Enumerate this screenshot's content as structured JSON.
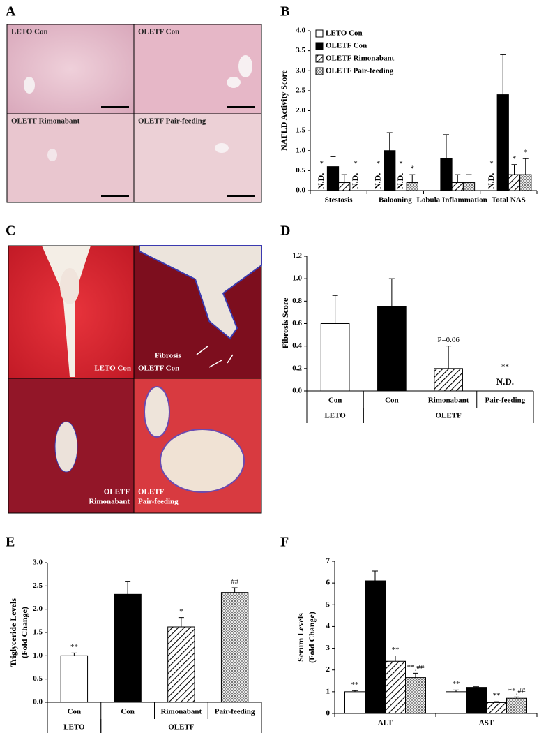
{
  "images": [
    {
      "panel": "A",
      "tiles": [
        {
          "label": [
            "LETO Con"
          ]
        },
        {
          "label": [
            "OLETF Con"
          ]
        },
        {
          "label": [
            "OLETF Rimonabant"
          ]
        },
        {
          "label": [
            "OLETF Pair-feeding"
          ]
        }
      ]
    },
    {
      "panel": "C",
      "tiles": [
        {
          "label": [
            "LETO Con"
          ]
        },
        {
          "label": [
            "OLETF Con"
          ]
        },
        {
          "label": [
            "OLETF",
            "Rimonabant"
          ]
        },
        {
          "label": [
            "OLETF",
            "Pair-feeding"
          ]
        }
      ],
      "annotation": "Fibrosis"
    }
  ],
  "chart_data": [
    {
      "type": "bar",
      "panel": "B",
      "ylabel": [
        "NAFLD Activity Score"
      ],
      "categories": [
        "Stestosis",
        "Balooning",
        "Lobula Inflammation",
        "Total NAS"
      ],
      "ylim": [
        0,
        4
      ],
      "yticks": [
        {
          "value": 0,
          "label": "0.0"
        },
        {
          "value": 0.5,
          "label": "0.5"
        },
        {
          "value": 1,
          "label": "1.0"
        },
        {
          "value": 1.5,
          "label": "1.5"
        },
        {
          "value": 2,
          "label": "2.0"
        },
        {
          "value": 2.5,
          "label": "2.5"
        },
        {
          "value": 3,
          "label": "3.0"
        },
        {
          "value": 3.5,
          "label": "3.5"
        },
        {
          "value": 4,
          "label": "4.0"
        }
      ],
      "legend": "top-left",
      "value_labels_rotated": true,
      "series": [
        {
          "name": "LETO Con",
          "style": "white",
          "values": [
            0,
            0,
            0,
            0
          ],
          "errors": [
            null,
            null,
            null,
            null
          ],
          "value_labels": [
            "N.D.",
            "N.D.",
            null,
            "N.D."
          ],
          "annotations": [
            "*",
            "*",
            null,
            "*"
          ]
        },
        {
          "name": "OLETF Con",
          "style": "black",
          "values": [
            0.6,
            1.0,
            0.8,
            2.4
          ],
          "errors": [
            0.25,
            0.45,
            0.6,
            1.0
          ],
          "value_labels": [
            null,
            null,
            null,
            null
          ],
          "annotations": [
            null,
            null,
            null,
            null
          ]
        },
        {
          "name": "OLETF Rimonabant",
          "style": "hatch",
          "values": [
            0.2,
            0,
            0.2,
            0.4
          ],
          "errors": [
            0.2,
            null,
            0.2,
            0.25
          ],
          "value_labels": [
            null,
            "N.D.",
            null,
            null
          ],
          "annotations": [
            null,
            "*",
            null,
            "*"
          ]
        },
        {
          "name": "OLETF Pair-feeding",
          "style": "dots",
          "values": [
            0,
            0.2,
            0.2,
            0.4
          ],
          "errors": [
            null,
            0.2,
            0.2,
            0.4
          ],
          "value_labels": [
            "N.D.",
            null,
            null,
            null
          ],
          "annotations": [
            "*",
            "*",
            null,
            "*"
          ]
        }
      ]
    },
    {
      "type": "bar",
      "panel": "D",
      "ylabel": [
        "Fibrosis Score"
      ],
      "categories": [
        "Con",
        "Con",
        "Rimonabant",
        "Pair-feeding"
      ],
      "groups": [
        {
          "name": "LETO",
          "span": 1
        },
        {
          "name": "OLETF",
          "span": 3
        }
      ],
      "ylim": [
        0,
        1.2
      ],
      "yticks": [
        {
          "value": 0,
          "label": "0.0"
        },
        {
          "value": 0.2,
          "label": "0.2"
        },
        {
          "value": 0.4,
          "label": "0.4"
        },
        {
          "value": 0.6,
          "label": "0.6"
        },
        {
          "value": 0.8,
          "label": "0.8"
        },
        {
          "value": 1,
          "label": "1.0"
        },
        {
          "value": 1.2,
          "label": "1.2"
        }
      ],
      "value_labels_rotated": false,
      "bar_styles": [
        "white",
        "black",
        "hatch",
        "dots"
      ],
      "values": [
        0.6,
        0.75,
        0.2,
        0
      ],
      "errors": [
        0.25,
        0.25,
        0.2,
        null
      ],
      "value_labels": [
        null,
        null,
        null,
        "N.D."
      ],
      "annotations": [
        null,
        null,
        "P=0.06",
        "**"
      ]
    },
    {
      "type": "bar",
      "panel": "E",
      "ylabel": [
        "Triglyceride Levels",
        "(Fold Change)"
      ],
      "categories": [
        "Con",
        "Con",
        "Rimonabant",
        "Pair-feeding"
      ],
      "groups": [
        {
          "name": "LETO",
          "span": 1
        },
        {
          "name": "OLETF",
          "span": 3
        }
      ],
      "ylim": [
        0,
        3
      ],
      "yticks": [
        {
          "value": 0,
          "label": "0.0"
        },
        {
          "value": 0.5,
          "label": "0.5"
        },
        {
          "value": 1,
          "label": "1.0"
        },
        {
          "value": 1.5,
          "label": "1.5"
        },
        {
          "value": 2,
          "label": "2.0"
        },
        {
          "value": 2.5,
          "label": "2.5"
        },
        {
          "value": 3,
          "label": "3.0"
        }
      ],
      "value_labels_rotated": false,
      "bar_styles": [
        "white",
        "black",
        "hatch",
        "dots"
      ],
      "values": [
        1.0,
        2.32,
        1.62,
        2.36
      ],
      "errors": [
        0.06,
        0.28,
        0.2,
        0.1
      ],
      "value_labels": [
        null,
        null,
        null,
        null
      ],
      "annotations": [
        "**",
        null,
        "*",
        "##"
      ]
    },
    {
      "type": "bar",
      "panel": "F",
      "ylabel": [
        "Serum Levels",
        "(Fold Change)"
      ],
      "categories": [
        "ALT",
        "AST"
      ],
      "ylim": [
        0,
        7
      ],
      "yticks": [
        0,
        1,
        2,
        3,
        4,
        5,
        6,
        7
      ],
      "value_labels_rotated": false,
      "series": [
        {
          "style": "white",
          "values": [
            1.0,
            1.0
          ],
          "errors": [
            0.05,
            0.08
          ],
          "value_labels": [
            null,
            null
          ],
          "annotations": [
            "**",
            "**"
          ]
        },
        {
          "style": "black",
          "values": [
            6.1,
            1.2
          ],
          "errors": [
            0.45,
            0.03
          ],
          "value_labels": [
            null,
            null
          ],
          "annotations": [
            null,
            null
          ]
        },
        {
          "style": "hatch",
          "values": [
            2.4,
            0.5
          ],
          "errors": [
            0.25,
            0.04
          ],
          "value_labels": [
            null,
            null
          ],
          "annotations": [
            "**",
            "**"
          ]
        },
        {
          "style": "dots",
          "values": [
            1.65,
            0.7
          ],
          "errors": [
            0.2,
            0.06
          ],
          "value_labels": [
            null,
            null
          ],
          "annotations": [
            "**,##",
            "**,##"
          ]
        }
      ]
    }
  ]
}
